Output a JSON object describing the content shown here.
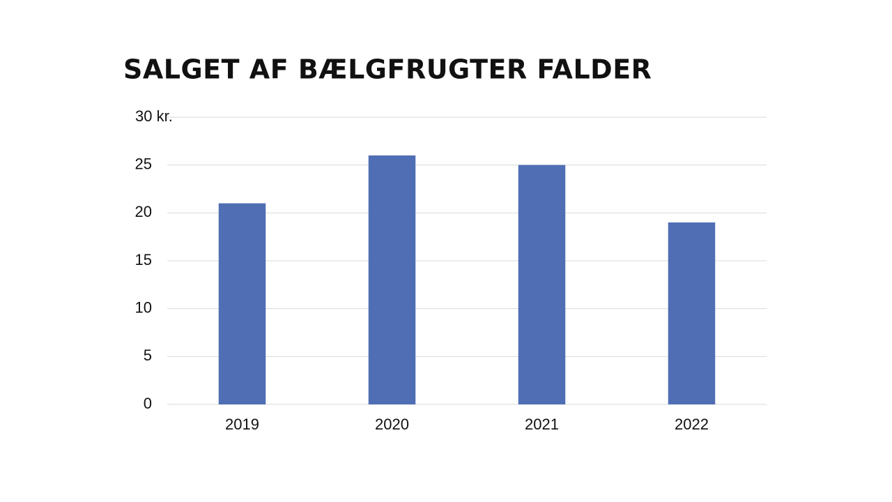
{
  "chart_data": {
    "type": "bar",
    "title": "SALGET AF BÆLGFRUGTER FALDER",
    "categories": [
      "2019",
      "2020",
      "2021",
      "2022"
    ],
    "values": [
      21,
      26,
      25,
      19
    ],
    "color": "#4f6eb4",
    "ylim": [
      0,
      30
    ],
    "yticks": [
      0,
      5,
      10,
      15,
      20,
      25,
      {
        "value": 30,
        "label": "30 kr."
      }
    ],
    "grid": true
  }
}
